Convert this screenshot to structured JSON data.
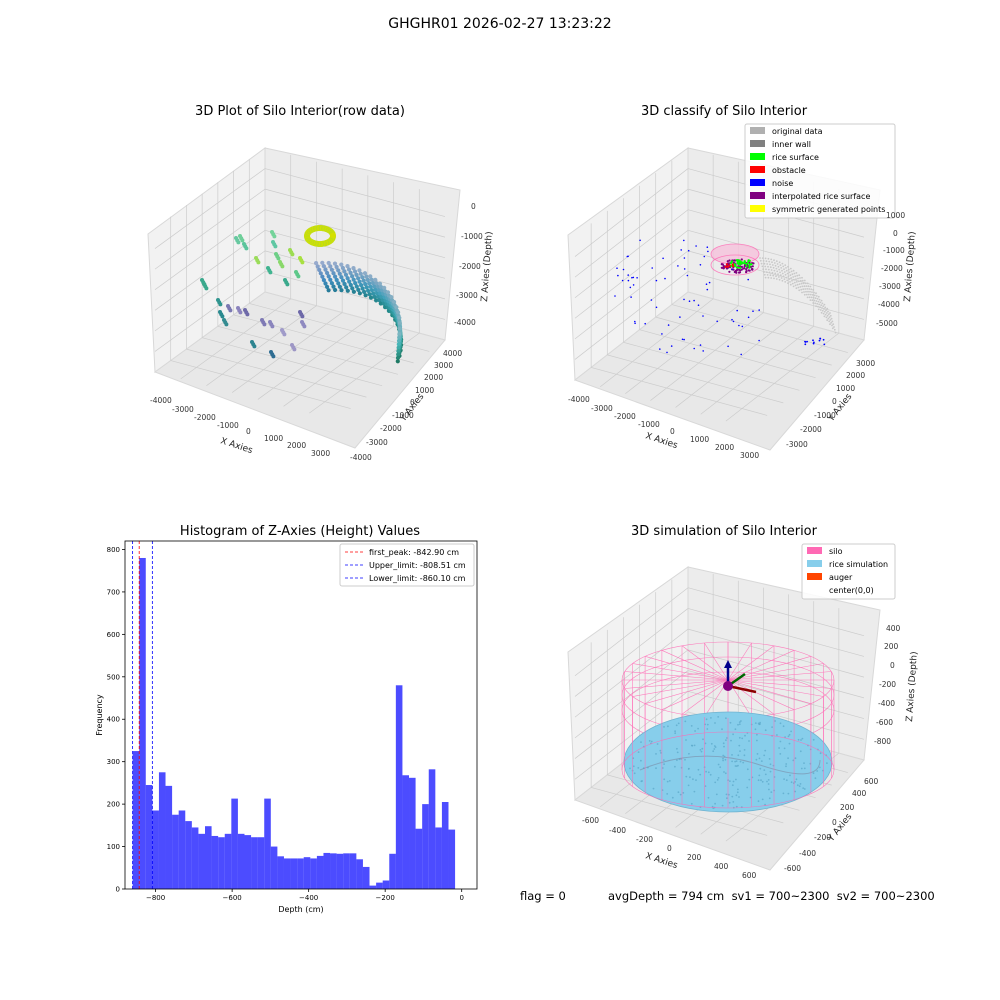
{
  "suptitle": "GHGHR01 2026-02-27 13:23:22",
  "panels": {
    "raw": {
      "title": "3D Plot of Silo Interior(row data)",
      "xlabel": "X Axies",
      "ylabel": "Y Axies",
      "zlabel": "Z Axies (Depth)",
      "xticks": [
        "-4000",
        "-3000",
        "-2000",
        "-1000",
        "0",
        "1000",
        "2000",
        "3000"
      ],
      "yticks": [
        "-4000",
        "-3000",
        "-2000",
        "-1000",
        "0",
        "1000",
        "2000",
        "3000",
        "4000"
      ],
      "zticks": [
        "-4000",
        "-3000",
        "-2000",
        "-1000",
        "0"
      ]
    },
    "classify": {
      "title": "3D classify of Silo Interior",
      "xlabel": "X Axies",
      "ylabel": "Y Axies",
      "zlabel": "Z Axies (Depth)",
      "xticks": [
        "-4000",
        "-3000",
        "-2000",
        "-1000",
        "0",
        "1000",
        "2000",
        "3000"
      ],
      "yticks": [
        "-3000",
        "-2000",
        "-1000",
        "0",
        "1000",
        "2000",
        "3000"
      ],
      "zticks": [
        "-5000",
        "-4000",
        "-3000",
        "-2000",
        "-1000",
        "0",
        "1000"
      ],
      "legend": [
        {
          "label": "original data",
          "color": "#b0b0b0"
        },
        {
          "label": "inner wall",
          "color": "#808080"
        },
        {
          "label": "rice surface",
          "color": "#00ff00"
        },
        {
          "label": "obstacle",
          "color": "#ff0000"
        },
        {
          "label": "noise",
          "color": "#0000ff"
        },
        {
          "label": "interpolated rice surface",
          "color": "#800080"
        },
        {
          "label": "symmetric generated points",
          "color": "#ffff00"
        }
      ]
    },
    "simulation": {
      "title": "3D simulation of Silo Interior",
      "xlabel": "X Axies",
      "ylabel": "Y Axies",
      "zlabel": "Z Axies (Depth)",
      "xticks": [
        "-600",
        "-400",
        "-200",
        "0",
        "200",
        "400",
        "600"
      ],
      "yticks": [
        "-600",
        "-400",
        "-200",
        "0",
        "200",
        "400",
        "600"
      ],
      "zticks": [
        "-800",
        "-600",
        "-400",
        "-200",
        "0",
        "200",
        "400"
      ],
      "legend": [
        {
          "label": "silo",
          "color": "#ff69b4"
        },
        {
          "label": "rice simulation",
          "color": "#87ceeb"
        },
        {
          "label": "auger",
          "color": "#ff4500"
        },
        {
          "label": "center(0,0)",
          "color": "#ffffff"
        }
      ]
    }
  },
  "chart_data": {
    "type": "bar",
    "title": "Histogram of Z-Axies (Height) Values",
    "xlabel": "Depth (cm)",
    "ylabel": "Frequency",
    "xlim": [
      -880,
      40
    ],
    "ylim": [
      0,
      820
    ],
    "xticks": [
      -800,
      -600,
      -400,
      -200,
      0
    ],
    "yticks": [
      0,
      100,
      200,
      300,
      400,
      500,
      600,
      700,
      800
    ],
    "bin_width": 17.2,
    "bin_start": -860.1,
    "values": [
      325,
      780,
      245,
      185,
      275,
      243,
      175,
      185,
      160,
      145,
      130,
      148,
      125,
      122,
      130,
      213,
      130,
      127,
      122,
      122,
      213,
      100,
      77,
      72,
      72,
      72,
      75,
      72,
      78,
      85,
      84,
      83,
      84,
      84,
      70,
      52,
      8,
      15,
      20,
      83,
      480,
      268,
      262,
      142,
      200,
      282,
      145,
      205,
      140
    ],
    "bar_color": "#0000ff",
    "bar_alpha": 0.7,
    "lines": [
      {
        "label": "first_peak: -842.90 cm",
        "x": -842.9,
        "color": "#ff0000"
      },
      {
        "label": "Upper_limit: -808.51 cm",
        "x": -808.51,
        "color": "#0000ff"
      },
      {
        "label": "Lower_limit: -860.10 cm",
        "x": -860.1,
        "color": "#0000ff"
      }
    ],
    "legend_position": "top-right"
  },
  "footer": {
    "flag": "flag = 0",
    "stats": "avgDepth = 794 cm  sv1 = 700~2300  sv2 = 700~2300"
  }
}
